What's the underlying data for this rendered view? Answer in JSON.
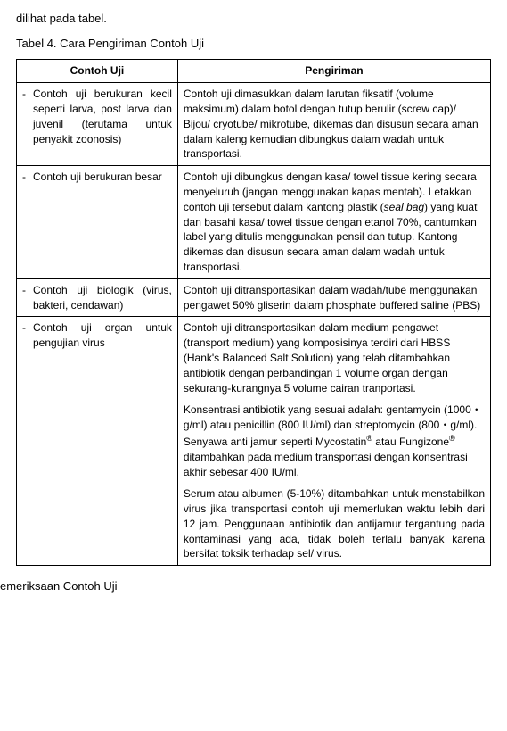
{
  "top_line": "dilihat pada tabel.",
  "caption": "Tabel 4. Cara Pengiriman Contoh Uji",
  "headers": {
    "col1": "Contoh Uji",
    "col2": "Pengiriman"
  },
  "rows": [
    {
      "left": "Contoh uji berukuran kecil seperti larva, post larva dan juvenil (terutama untuk penyakit  zoonosis)",
      "right": "Contoh uji dimasukkan  dalam  larutan  fiksatif (volume maksimum) dalam botol dengan tutup berulir (screw cap)/ Bijou/ cryotube/ mikrotube, dikemas dan disusun secara aman dalam kaleng kemudian dibungkus dalam wadah untuk transportasi."
    },
    {
      "left": "Contoh  uji  berukuran besar",
      "right_html": "Contoh uji dibungkus dengan kasa/ towel tissue kering secara  menyeluruh (jangan menggunakan kapas mentah). Letakkan contoh uji tersebut dalam kantong plastik (<i>seal bag</i>) yang kuat dan basahi kasa/ towel tissue dengan etanol 70%, cantumkan label yang ditulis menggunakan pensil dan tutup. Kantong dikemas dan disusun secara aman dalam wadah untuk transportasi."
    },
    {
      "left": "Contoh uji biologik (virus, bakteri, cendawan)",
      "right": "Contoh uji ditransportasikan dalam wadah/tube menggunakan pengawet  50%  gliserin  dalam phosphate buffered saline (PBS)"
    },
    {
      "left": "Contoh uji organ untuk pengujian virus",
      "right_paragraphs": [
        "Contoh uji ditransportasikan dalam medium pengawet (transport medium) yang komposisinya terdiri dari HBSS (Hank's Balanced Salt Solution) yang telah ditambahkan antibiotik dengan perbandingan  1 volume  organ  dengan  sekurang-kurangnya  5  volume  cairan  tranportasi.",
        "Konsentrasi antibiotik yang sesuai adalah: gentamycin (1000・g/ml) atau penicillin (800 IU/ml) dan streptomycin (800・g/ml). Senyawa anti jamur seperti Mycostatin<span class='small-sup'>®</span> atau Fungizone<span class='small-sup'>®</span> ditambahkan pada medium transportasi dengan konsentrasi akhir sebesar 400 IU/ml.",
        "Serum atau albumen (5-10%) ditambahkan untuk menstabilkan virus jika transportasi contoh uji memerlukan waktu lebih dari 12 jam. Penggunaan antibiotik dan antijamur tergantung pada kontaminasi yang ada, tidak boleh terlalu banyak karena bersifat toksik terhadap sel/ virus."
      ],
      "last_paragraph_justified": true
    }
  ],
  "bottom_line": "emeriksaan Contoh Uji"
}
